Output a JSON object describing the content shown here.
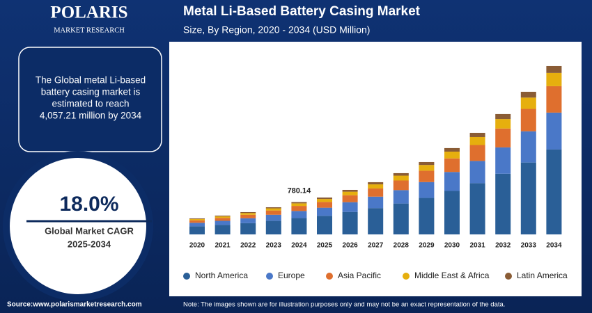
{
  "brand": {
    "name": "POLARIS",
    "tagline": "MARKET RESEARCH"
  },
  "highlight": {
    "text_lines": [
      "The Global metal Li-based",
      "battery casing market is",
      "estimated to reach",
      "4,057.21 million by 2034"
    ]
  },
  "cagr": {
    "value": "18.0%",
    "label_lines": [
      "Global Market CAGR",
      "2025-2034"
    ]
  },
  "footer": {
    "source": "Source:www.polarismarketresearch.com",
    "note": "Note: The images shown are for illustration purposes only and may not be an exact representation of the data."
  },
  "chart_data": {
    "type": "stacked_bar",
    "title": "Metal Li-Based Battery Casing Market",
    "subtitle": "Size, By Region, 2020 - 2034 (USD Million)",
    "categories": [
      "2020",
      "2021",
      "2022",
      "2023",
      "2024",
      "2025",
      "2026",
      "2027",
      "2028",
      "2029",
      "2030",
      "2031",
      "2032",
      "2033",
      "2034"
    ],
    "ylim": [
      0,
      4400
    ],
    "series": [
      {
        "name": "North America",
        "color": "#2a5f97",
        "values": [
          195,
          228,
          271,
          330,
          393,
          448,
          541,
          634,
          744,
          879,
          1048,
          1234,
          1462,
          1732,
          2046
        ]
      },
      {
        "name": "Europe",
        "color": "#4a78c8",
        "values": [
          85,
          99,
          118,
          143,
          171,
          195,
          235,
          276,
          323,
          382,
          456,
          536,
          635,
          753,
          889
        ]
      },
      {
        "name": "Asia Pacific",
        "color": "#df6f2e",
        "values": [
          60,
          71,
          84,
          103,
          122,
          140,
          168,
          197,
          232,
          274,
          327,
          384,
          455,
          540,
          637
        ]
      },
      {
        "name": "Middle East & Africa",
        "color": "#e6af0e",
        "values": [
          30,
          36,
          42,
          52,
          62,
          70,
          85,
          99,
          117,
          138,
          164,
          193,
          229,
          272,
          319
        ]
      },
      {
        "name": "Latin America",
        "color": "#8a5c35",
        "values": [
          16,
          19,
          22,
          26,
          32,
          36,
          44,
          52,
          60,
          71,
          85,
          101,
          120,
          140,
          166
        ]
      }
    ],
    "annotations": [
      {
        "category": "2024",
        "text": "780.14"
      }
    ]
  }
}
